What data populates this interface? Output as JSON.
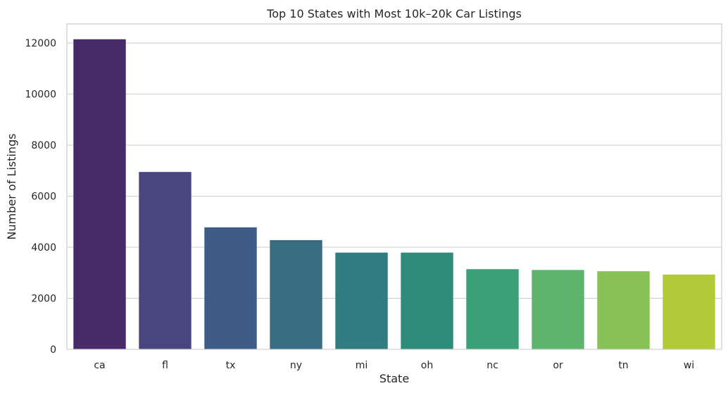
{
  "chart_data": {
    "type": "bar",
    "title": "Top 10 States with Most 10k–20k Car Listings",
    "xlabel": "State",
    "ylabel": "Number of Listings",
    "categories": [
      "ca",
      "fl",
      "tx",
      "ny",
      "mi",
      "oh",
      "nc",
      "or",
      "tn",
      "wi"
    ],
    "values": [
      12150,
      6950,
      4780,
      4280,
      3790,
      3790,
      3140,
      3110,
      3060,
      2930
    ],
    "ylim": [
      0,
      12750
    ],
    "yticks": [
      0,
      2000,
      4000,
      6000,
      8000,
      10000,
      12000
    ],
    "grid": "horizontal",
    "legend": "none",
    "colors": [
      "#472a68",
      "#47467e",
      "#3f5c89",
      "#386d83",
      "#317c80",
      "#2e8c7b",
      "#3aa075",
      "#5fb46d",
      "#88c155",
      "#b2c938"
    ],
    "background": "#ffffff",
    "grid_color": "#cccccc",
    "spine_color": "#cccccc"
  }
}
